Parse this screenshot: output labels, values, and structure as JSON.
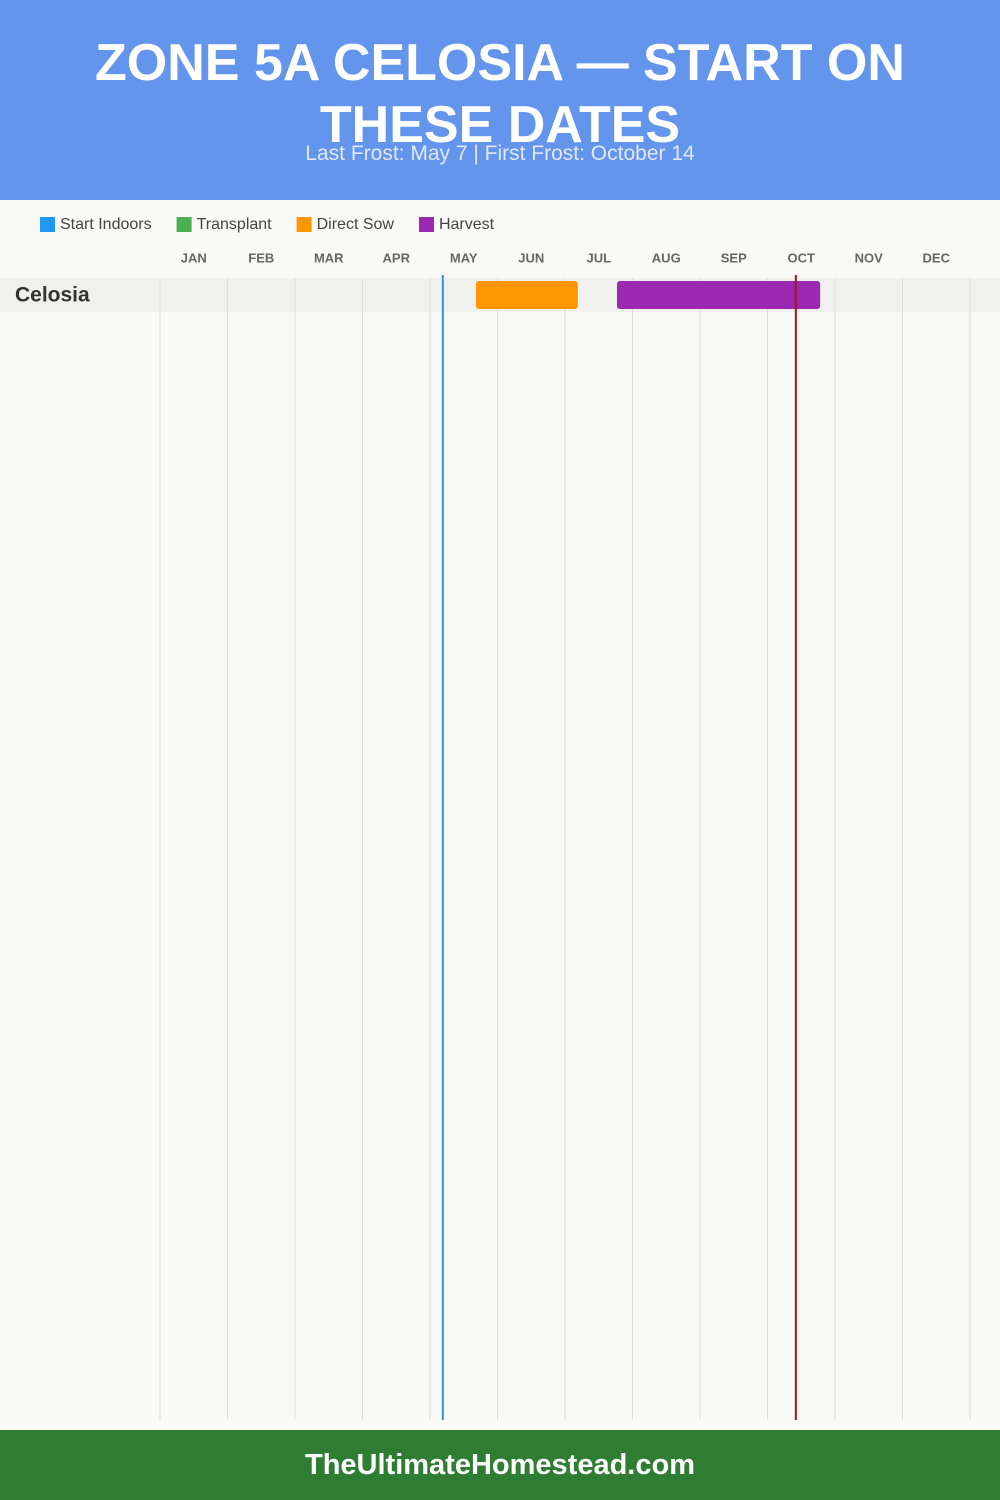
{
  "chart_data": {
    "type": "gantt",
    "title": "ZONE 5A CELOSIA — START ON THESE DATES",
    "subtitle": "Last Frost: May 7 | First Frost: October 14",
    "months": [
      "JAN",
      "FEB",
      "MAR",
      "APR",
      "MAY",
      "JUN",
      "JUL",
      "AUG",
      "SEP",
      "OCT",
      "NOV",
      "DEC"
    ],
    "xlim": [
      0,
      12
    ],
    "rows": [
      "Celosia"
    ],
    "series": [
      {
        "name": "Start Indoors",
        "color": "#2196f3",
        "values": [
          null
        ]
      },
      {
        "name": "Transplant",
        "color": "#4caf50",
        "values": [
          null
        ]
      },
      {
        "name": "Direct Sow",
        "color": "#ff9800",
        "values": [
          [
            4.68,
            6.19
          ]
        ]
      },
      {
        "name": "Harvest",
        "color": "#9c27b0",
        "values": [
          [
            6.77,
            9.78
          ]
        ]
      }
    ],
    "markers": [
      {
        "x": 4.19,
        "color": "#3a8fd6"
      },
      {
        "x": 9.42,
        "color": "#a01818"
      }
    ]
  },
  "footer": "TheUltimateHomestead.com"
}
